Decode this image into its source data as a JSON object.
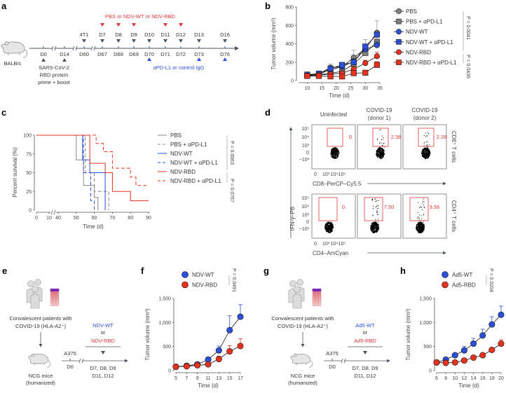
{
  "panel_labels": [
    "a",
    "b",
    "c",
    "d",
    "e",
    "f",
    "g",
    "h"
  ],
  "timeline_a": {
    "host": "BALB/c",
    "treatment_title": "PBS or NDV-WT or NDV-RBD",
    "top_labels": [
      "4T1",
      "D7",
      "D8",
      "D9",
      "D10",
      "D11",
      "D12",
      "D13",
      "D16"
    ],
    "bottom_labels": [
      "D0",
      "D14",
      "D60",
      "D67",
      "D68",
      "D69",
      "D70",
      "D71",
      "D72",
      "D73",
      "D76"
    ],
    "treatment_days": [
      "D7",
      "D8",
      "D9",
      "D11",
      "D12"
    ],
    "vaccine_lines": [
      "SARS-CoV-2",
      "RBD protein",
      "prime + boost"
    ],
    "antibody_label": "αPD-L1 or control IgG",
    "antibody_days": [
      "D70",
      "D73",
      "D76"
    ],
    "colors": {
      "treatment": "#e0353a",
      "antibody": "#2b4fd8",
      "timeline": "#4a5563"
    }
  },
  "flow_d": {
    "columns": [
      [
        "Uninfected"
      ],
      [
        "COVID-19",
        "(donor 1)"
      ],
      [
        "COVID-19",
        "(donor 2)"
      ]
    ],
    "rows": [
      {
        "label": "CD8⁺ T cells",
        "x_axis": "CD8–PerCP–Cy5.5",
        "gate_values": [
          "0",
          "2.38",
          "2.28"
        ]
      },
      {
        "label": "CD4⁺ T cells",
        "x_axis": "CD4–AmCyan",
        "gate_values": [
          "0",
          "7.50",
          "3.56"
        ]
      }
    ],
    "y_axis": "IFN-γ–PB",
    "y_ticks": [
      "10⁵",
      "10⁴",
      "10³",
      "0",
      "−10³"
    ],
    "x_ticks": [
      "0",
      "10³",
      "10⁴",
      "10⁵"
    ],
    "gate_color": "#e0353a"
  },
  "schematic_e": {
    "patients": [
      "Convalescent patients with",
      "COVID-19 (HLA-A2⁺)"
    ],
    "mice": [
      "NCG mice",
      "(humanized)"
    ],
    "cell_line": "A375",
    "day0": "D0",
    "treatment_a": "NDV-WT",
    "or": "or",
    "treatment_b": "NDV-RBD",
    "days": [
      "D7, D8, D9",
      "D11, D12"
    ]
  },
  "schematic_g": {
    "patients": [
      "Convalescent patients with",
      "COVID-19 (HLA-A2⁺)"
    ],
    "mice": [
      "NCG mice",
      "(humanized)"
    ],
    "cell_line": "A375",
    "day0": "D0",
    "treatment_a": "Ad5-WT",
    "or": "or",
    "treatment_b": "Ad5-RBD",
    "days": [
      "D7, D8, D9",
      "D11, D12"
    ]
  },
  "chart_data": [
    {
      "panel": "b",
      "type": "line",
      "xlabel": "Time (d)",
      "ylabel": "Tumor volume (mm³)",
      "xlim": [
        7,
        35
      ],
      "ylim": [
        0,
        800
      ],
      "xticks": [
        10,
        15,
        20,
        25,
        30,
        35
      ],
      "yticks": [
        0,
        200,
        400,
        600,
        800
      ],
      "x": [
        10,
        14,
        18,
        22,
        26,
        30,
        34
      ],
      "series": [
        {
          "name": "PBS",
          "marker": "circle",
          "color": "#7f7f7f",
          "values": [
            60,
            75,
            140,
            150,
            250,
            345,
            520
          ],
          "error_upper": [
            70,
            85,
            180,
            175,
            330,
            445,
            650
          ]
        },
        {
          "name": "PBS + αPD-L1",
          "marker": "square",
          "color": "#7f7f7f",
          "values": [
            55,
            65,
            80,
            100,
            180,
            300,
            420
          ],
          "error_upper": [
            65,
            75,
            95,
            115,
            200,
            330,
            460
          ]
        },
        {
          "name": "NDV-WT",
          "marker": "circle",
          "color": "#2b4fd8",
          "values": [
            60,
            70,
            120,
            150,
            210,
            340,
            385
          ],
          "error_upper": [
            70,
            80,
            135,
            170,
            230,
            380,
            420
          ]
        },
        {
          "name": "NDV-WT + αPD-L1",
          "marker": "square",
          "color": "#2b4fd8",
          "values": [
            65,
            75,
            130,
            170,
            200,
            370,
            500
          ],
          "error_upper": [
            75,
            85,
            150,
            190,
            220,
            390,
            510
          ]
        },
        {
          "name": "NDV-RBD",
          "marker": "circle",
          "color": "#e8321e",
          "values": [
            55,
            60,
            70,
            80,
            125,
            190,
            265
          ],
          "error_upper": [
            60,
            65,
            80,
            90,
            140,
            220,
            310
          ]
        },
        {
          "name": "NDV-RBD + αPD-L1",
          "marker": "square",
          "color": "#e8321e",
          "values": [
            50,
            50,
            45,
            45,
            80,
            85,
            170
          ],
          "error_upper": [
            55,
            55,
            50,
            50,
            90,
            95,
            205
          ]
        }
      ],
      "p_values": [
        "P = 0.0041",
        "P = 0.0436"
      ],
      "legend": "right"
    },
    {
      "panel": "c",
      "type": "line",
      "xlabel": "Time (d)",
      "ylabel": "Percent survival (%)",
      "xlim": [
        0,
        90
      ],
      "ylim": [
        0,
        100
      ],
      "x_axis_break": [
        10,
        40
      ],
      "xticks": [
        0,
        10,
        40,
        50,
        60,
        70,
        80,
        90
      ],
      "yticks": [
        0,
        25,
        50,
        75,
        100
      ],
      "series": [
        {
          "name": "PBS",
          "style": "solid",
          "color": "#7f7f7f",
          "steps": [
            [
              0,
              100
            ],
            [
              50,
              67
            ],
            [
              54,
              33
            ],
            [
              60,
              17
            ],
            [
              62,
              0
            ]
          ]
        },
        {
          "name": "PBS + αPD-L1",
          "style": "dashed",
          "color": "#7f7f7f",
          "steps": [
            [
              0,
              100
            ],
            [
              55,
              50
            ],
            [
              60,
              25
            ],
            [
              68,
              0
            ]
          ]
        },
        {
          "name": "NDV-WT",
          "style": "solid",
          "color": "#2b4fd8",
          "steps": [
            [
              0,
              100
            ],
            [
              53.5,
              67
            ],
            [
              57.5,
              50
            ],
            [
              66,
              0
            ]
          ]
        },
        {
          "name": "NDV-WT + αPD-L1",
          "style": "dashed",
          "color": "#2b4fd8",
          "steps": [
            [
              0,
              100
            ],
            [
              54,
              50
            ],
            [
              58,
              12.5
            ],
            [
              60,
              0
            ]
          ]
        },
        {
          "name": "NDV-RBD",
          "style": "solid",
          "color": "#e8321e",
          "steps": [
            [
              0,
              100
            ],
            [
              57.5,
              62.5
            ],
            [
              66,
              50
            ],
            [
              70,
              25
            ],
            [
              80,
              12.5
            ],
            [
              90,
              12.5
            ]
          ]
        },
        {
          "name": "NDV-RBD + αPD-L1",
          "style": "dashed",
          "color": "#e8321e",
          "steps": [
            [
              0,
              100
            ],
            [
              61,
              89
            ],
            [
              65,
              78
            ],
            [
              70,
              56
            ],
            [
              80,
              44
            ],
            [
              83,
              33
            ],
            [
              90,
              33
            ]
          ]
        }
      ],
      "p_values": [
        "P = 0.0063",
        "P = 0.0767"
      ],
      "legend": "right"
    },
    {
      "panel": "f",
      "type": "line",
      "xlabel": "Time (d)",
      "ylabel": "Tumor volume (mm³)",
      "xlim": [
        5,
        17
      ],
      "ylim": [
        0,
        1500
      ],
      "xticks": [
        5,
        7,
        9,
        11,
        13,
        15,
        17
      ],
      "yticks": [
        0,
        500,
        1000,
        1500
      ],
      "ytick_labels": [
        "0",
        "500",
        "1,000",
        "1,500"
      ],
      "x": [
        5,
        7,
        9,
        11,
        13,
        15,
        17
      ],
      "series": [
        {
          "name": "NDV-WT",
          "color": "#2b4fd8",
          "values": [
            80,
            100,
            130,
            230,
            420,
            840,
            1120
          ],
          "error_upper": [
            90,
            110,
            140,
            250,
            510,
            1140,
            1370
          ]
        },
        {
          "name": "NDV-RBD",
          "color": "#e8321e",
          "values": [
            80,
            90,
            110,
            130,
            240,
            400,
            510
          ],
          "error_upper": [
            90,
            100,
            120,
            150,
            300,
            520,
            660
          ]
        }
      ],
      "p_values": [
        "P = 0.0491"
      ],
      "legend": "top"
    },
    {
      "panel": "h",
      "type": "line",
      "xlabel": "Time (d)",
      "ylabel": "Tumor volume (mm³)",
      "xlim": [
        6,
        20
      ],
      "ylim": [
        0,
        1500
      ],
      "xticks": [
        6,
        8,
        10,
        12,
        14,
        16,
        18,
        20
      ],
      "yticks": [
        0,
        500,
        1000,
        1500
      ],
      "ytick_labels": [
        "0",
        "500",
        "1,000",
        "1,500"
      ],
      "x": [
        6,
        8,
        10,
        12,
        14,
        16,
        18,
        20
      ],
      "series": [
        {
          "name": "Ad5-WT",
          "color": "#2b4fd8",
          "values": [
            170,
            230,
            320,
            420,
            560,
            730,
            960,
            1160
          ],
          "error_upper": [
            180,
            240,
            330,
            500,
            670,
            860,
            1120,
            1340
          ]
        },
        {
          "name": "Ad5-RBD",
          "color": "#e8321e",
          "values": [
            170,
            160,
            170,
            210,
            270,
            320,
            430,
            560
          ],
          "error_upper": [
            180,
            170,
            180,
            220,
            280,
            340,
            450,
            640
          ]
        }
      ],
      "p_values": [
        "P = 0.0204"
      ],
      "legend": "top"
    }
  ]
}
